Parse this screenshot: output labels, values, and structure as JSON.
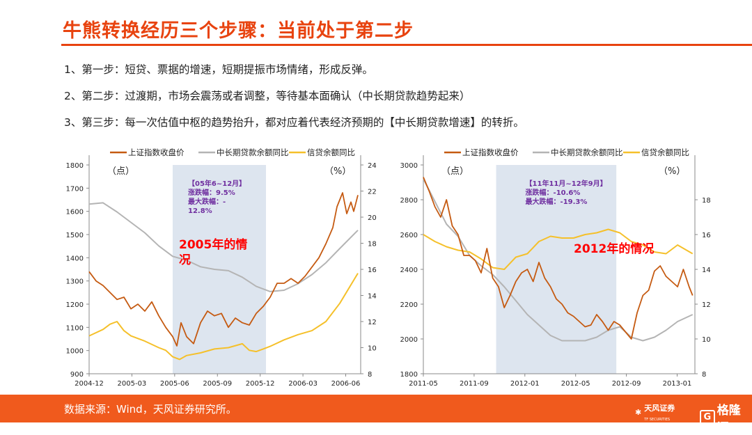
{
  "title": "牛熊转换经历三个步骤：当前处于第二步",
  "steps": [
    "1、第一步：短贷、票据的增速，短期提振市场情绪，形成反弹。",
    "2、第二步：过渡期，市场会震荡或者调整，等待基本面确认（中长期贷款趋势起来）",
    "3、第三步：每一次估值中枢的趋势抬升，都对应着代表经济预期的【中长期贷款增速】的转折。"
  ],
  "legend": [
    "上证指数收盘价",
    "中长期贷款余额同比",
    "信贷余额同比"
  ],
  "colors": {
    "index": "#c55a11",
    "mlt": "#b4b4b4",
    "credit": "#f5c02a",
    "shade": "#dde5ef",
    "accent": "#e8430f",
    "note": "#7030a0",
    "overlay": "#ff0000"
  },
  "footer": {
    "source": "数据来源：Wind，天风证券研究所。",
    "logo1": "天风证券",
    "logo1_sub": "TF SECURITIES",
    "logo2": "格隆汇",
    "logo2_mark": "G"
  },
  "chart_data": [
    {
      "type": "line",
      "overlay_label": "2005年的情况",
      "left_unit": "（点）",
      "right_unit": "（%）",
      "y_left": {
        "min": 900,
        "max": 1800,
        "ticks": [
          900,
          1000,
          1100,
          1200,
          1300,
          1400,
          1500,
          1600,
          1700,
          1800
        ]
      },
      "y_right": {
        "min": 8,
        "max": 24,
        "ticks": [
          8,
          10,
          12,
          14,
          16,
          18,
          20,
          22,
          24
        ]
      },
      "x_ticks": [
        "2004-12",
        "2005-03",
        "2005-06",
        "2005-09",
        "2005-12",
        "2006-03",
        "2006-06"
      ],
      "x_range": [
        0,
        19.5
      ],
      "shade": {
        "from": 6.0,
        "to": 12.7,
        "lines": [
          "【05年6~12月】",
          "涨跌幅：9.5%",
          "最大跌幅：-",
          "12.8%"
        ]
      },
      "series": [
        {
          "name": "上证指数收盘价",
          "axis": "left",
          "x": [
            0,
            0.5,
            1,
            1.5,
            2,
            2.5,
            3,
            3.5,
            4,
            4.5,
            5,
            5.5,
            6,
            6.3,
            6.6,
            7,
            7.5,
            8,
            8.5,
            9,
            9.5,
            10,
            10.5,
            11,
            11.5,
            12,
            12.5,
            13,
            13.5,
            14,
            14.5,
            15,
            15.5,
            16,
            16.5,
            17,
            17.5,
            17.8,
            18,
            18.2,
            18.5,
            18.8,
            19,
            19.3
          ],
          "y": [
            1340,
            1300,
            1280,
            1250,
            1220,
            1230,
            1180,
            1200,
            1170,
            1210,
            1150,
            1100,
            1060,
            1020,
            1120,
            1060,
            1030,
            1120,
            1170,
            1150,
            1160,
            1100,
            1140,
            1120,
            1110,
            1160,
            1190,
            1230,
            1290,
            1290,
            1310,
            1290,
            1320,
            1360,
            1400,
            1460,
            1530,
            1620,
            1650,
            1680,
            1590,
            1640,
            1600,
            1670
          ]
        },
        {
          "name": "中长期贷款余额同比",
          "axis": "right",
          "x": [
            0,
            1,
            2,
            3,
            4,
            5,
            6,
            7,
            8,
            9,
            10,
            11,
            12,
            13,
            14,
            15,
            16,
            17,
            18,
            19.3
          ],
          "y": [
            21.0,
            21.1,
            20.4,
            19.6,
            18.8,
            17.8,
            17.0,
            16.7,
            16.2,
            16.0,
            15.9,
            15.4,
            14.7,
            14.3,
            14.4,
            14.9,
            15.6,
            16.5,
            17.6,
            19.0
          ]
        },
        {
          "name": "信贷余额同比",
          "axis": "right",
          "x": [
            0,
            1,
            1.5,
            2,
            2.5,
            3,
            4,
            5,
            5.5,
            6,
            6.5,
            7,
            8,
            9,
            10,
            11,
            11.5,
            12,
            12.5,
            13,
            14,
            15,
            16,
            17,
            18,
            19.3
          ],
          "y": [
            10.9,
            11.4,
            11.8,
            12.0,
            11.3,
            10.9,
            10.5,
            10.0,
            9.8,
            9.3,
            9.1,
            9.4,
            9.6,
            9.9,
            10.0,
            10.3,
            9.8,
            9.7,
            9.9,
            10.1,
            10.6,
            11.0,
            11.3,
            12.0,
            13.4,
            15.7
          ]
        }
      ]
    },
    {
      "type": "line",
      "overlay_label": "2012年的情况",
      "left_unit": "（点）",
      "right_unit": "（%）",
      "y_left": {
        "min": 1800,
        "max": 3000,
        "ticks": [
          1800,
          2000,
          2200,
          2400,
          2600,
          2800,
          3000
        ]
      },
      "y_right": {
        "min": 8,
        "max": 20,
        "ticks": [
          8,
          10,
          12,
          14,
          16,
          18
        ]
      },
      "x_ticks": [
        "2011-05",
        "2011-09",
        "2012-01",
        "2012-05",
        "2012-09",
        "2013-01"
      ],
      "x_range": [
        0,
        23.5
      ],
      "shade": {
        "from": 6.3,
        "to": 16.7,
        "lines": [
          "【11年11月~12年9月】",
          "涨跌幅：-10.6%",
          "最大跌幅：-19.3%"
        ]
      },
      "series": [
        {
          "name": "上证指数收盘价",
          "axis": "left",
          "x": [
            0,
            0.5,
            1,
            1.5,
            2,
            2.5,
            3,
            3.5,
            4,
            4.5,
            5,
            5.5,
            6,
            6.5,
            7,
            7.5,
            8,
            8.5,
            9,
            9.5,
            10,
            10.5,
            11,
            11.5,
            12,
            12.5,
            13,
            13.5,
            14,
            14.5,
            15,
            15.5,
            16,
            16.5,
            17,
            17.5,
            18,
            18.5,
            19,
            19.5,
            20,
            20.5,
            21,
            21.5,
            22,
            22.5,
            23,
            23.3
          ],
          "y": [
            2930,
            2850,
            2760,
            2700,
            2800,
            2650,
            2600,
            2480,
            2480,
            2450,
            2380,
            2520,
            2350,
            2300,
            2180,
            2250,
            2330,
            2380,
            2400,
            2330,
            2440,
            2350,
            2300,
            2230,
            2200,
            2150,
            2130,
            2100,
            2070,
            2080,
            2140,
            2100,
            2050,
            2100,
            2080,
            2040,
            2000,
            2150,
            2250,
            2280,
            2390,
            2420,
            2360,
            2330,
            2300,
            2400,
            2300,
            2250
          ]
        },
        {
          "name": "中长期贷款余额同比",
          "axis": "right",
          "x": [
            0,
            1,
            2,
            3,
            4,
            5,
            6,
            7,
            8,
            9,
            10,
            11,
            12,
            13,
            14,
            15,
            16,
            17,
            18,
            19,
            20,
            21,
            22,
            23.3
          ],
          "y": [
            19.2,
            17.9,
            16.6,
            15.9,
            14.8,
            14.2,
            13.7,
            13.0,
            12.2,
            11.4,
            10.8,
            10.2,
            9.9,
            9.9,
            9.9,
            10.1,
            10.5,
            10.7,
            10.1,
            9.9,
            10.1,
            10.5,
            11.0,
            11.4
          ]
        },
        {
          "name": "信贷余额同比",
          "axis": "right",
          "x": [
            0,
            1,
            2,
            3,
            4,
            5,
            6,
            7,
            8,
            9,
            10,
            11,
            12,
            13,
            14,
            15,
            16,
            17,
            18,
            19,
            20,
            21,
            22,
            23.3
          ],
          "y": [
            16.0,
            15.6,
            15.3,
            15.1,
            15.0,
            14.6,
            14.1,
            14.0,
            14.7,
            14.9,
            15.6,
            15.9,
            15.8,
            15.8,
            16.0,
            16.1,
            16.3,
            16.1,
            15.6,
            15.4,
            15.0,
            14.9,
            15.4,
            14.9
          ]
        }
      ]
    }
  ]
}
